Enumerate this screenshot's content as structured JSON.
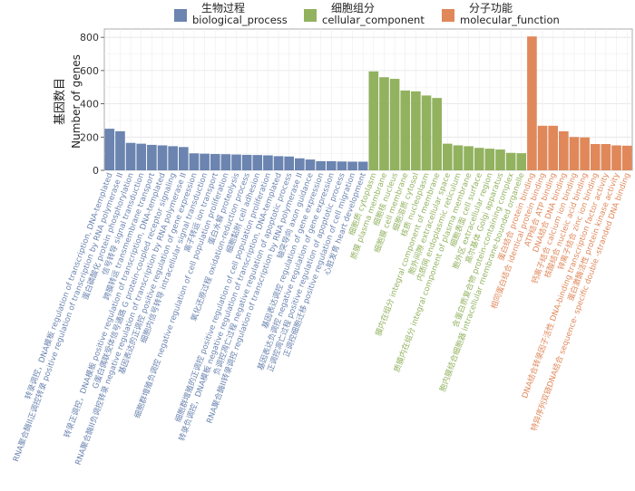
{
  "chart_data": {
    "type": "bar",
    "title": "",
    "xlabel": "",
    "ylabel_cn": "基因数目",
    "ylabel_en": "Number of genes",
    "ylim": [
      0,
      850
    ],
    "yticks": [
      0,
      200,
      400,
      600,
      800
    ],
    "grid": true,
    "legend_position": "top",
    "series": [
      {
        "name_cn": "生物过程",
        "name_en": "biological_process",
        "color": "#6b84b0",
        "categories": [
          "转录调控，DNA模板 regulation of transcription, DNA-templated",
          "RNA聚合酶II正调控转录 positive regulation of transcription by RNA polymerase II",
          "蛋白磷酸化 protein phosphorylation",
          "信号转导 signal transduction",
          "跨膜转运 transmembrane transport",
          "转录正调控，DNA模板 positive regulation of transcription, DNA-templated",
          "G蛋白偶联受体信号通路 G protein-coupled receptor signaling",
          "RNA聚合酶II负调控转录 negative regulation of transcription by RNA polymerase II",
          "基因表达的正调控 positive regulation of gene expression",
          "细胞内信号转导 intracellular signal transduction",
          "离子转运 ion transport",
          "细胞群增殖负调控 negative regulation of cell population proliferation",
          "蛋白水解 proteolysis",
          "氧化还原过程 oxidation-reduction process",
          "细胞黏附 cell adhesion",
          "细胞群增殖的正调控 positive regulation of cell population proliferation",
          "转录负调控，DNA模板 negative regulation of transcription, DNA-templated",
          "负调控凋亡过程 negative regulation of apoptotic process",
          "RNA聚合酶II转录调控 regulation of transcription by RNA polymerase II",
          "轴突导向 axon guidance",
          "基因表达调控 regulation of gene expression",
          "基因表达负调控 negative regulation of gene expression",
          "正调控凋亡过程 positive regulation of apoptotic process",
          "正调控细胞迁移 positive regulation of cell migration",
          "心脏发育 heart development"
        ],
        "values": [
          250,
          235,
          165,
          160,
          153,
          150,
          145,
          140,
          102,
          100,
          98,
          97,
          95,
          93,
          92,
          90,
          85,
          83,
          72,
          65,
          55,
          55,
          53,
          52,
          52
        ]
      },
      {
        "name_cn": "细胞组分",
        "name_en": "cellular_component",
        "color": "#92b25f",
        "categories": [
          "细胞质 cytoplasm",
          "质膜 plasma membrane",
          "细胞核 nucleus",
          "细胞膜 cell membrane",
          "细胞溶质 cytosol",
          "核质 nucleoplasm",
          "膜内在组分 integral component of membrane",
          "胞外间隙 extracellular space",
          "内质网 endoplasmic reticulum",
          "质膜内在组分 integral component of plasma membrane",
          "细胞表面 cell surface",
          "胞外区 extracellular region",
          "高尔基体 Golgi apparatus",
          "含蛋白质复合物 protein-containing complex",
          "胞内膜结合细胞器 intracellular membrane-bounded organelle"
        ],
        "values": [
          595,
          560,
          550,
          480,
          475,
          450,
          435,
          160,
          150,
          145,
          135,
          130,
          125,
          105,
          103
        ]
      },
      {
        "name_cn": "分子功能",
        "name_en": "molecular_function",
        "color": "#e0885a",
        "categories": [
          "蛋白结合 protein binding",
          "相同蛋白结合 identical protein binding",
          "ATP结合 ATP binding",
          "DNA结合 DNA binding",
          "钙离子结合 calcium ion binding",
          "核酸结合 nucleic acid binding",
          "锌离子结合 zinc ion binding",
          "DNA结合转录因子活性 DNA-binding transcription factor activity",
          "蛋白激酶活性 protein kinase activity",
          "特异序列双链DNA结合 sequence- specific double -stranded DNA binding"
        ],
        "values": [
          805,
          268,
          268,
          235,
          200,
          198,
          158,
          158,
          150,
          148
        ]
      }
    ]
  }
}
